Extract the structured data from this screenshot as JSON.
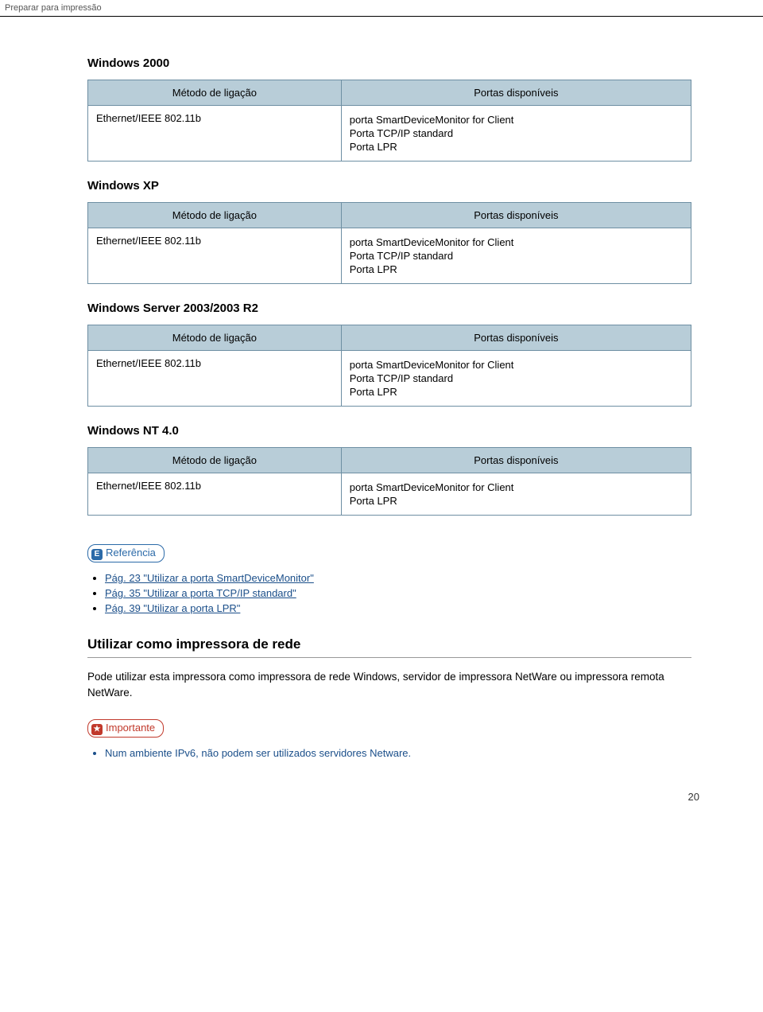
{
  "header": "Preparar para impressão",
  "page_number": "20",
  "colors": {
    "table_header_bg": "#b8cdd8",
    "table_border": "#6e8fa3",
    "link": "#1b4f8a",
    "badge_ref": "#2b6aa8",
    "badge_important": "#c1392b"
  },
  "common": {
    "col1": "Método de ligação",
    "col2": "Portas disponíveis",
    "ethernet": "Ethernet/IEEE 802.11b",
    "port_sdm": "porta SmartDeviceMonitor for Client",
    "port_tcpip": "Porta TCP/IP standard",
    "port_lpr": "Porta LPR"
  },
  "sections": [
    {
      "title": "Windows 2000",
      "ports": [
        "port_sdm",
        "port_tcpip",
        "port_lpr"
      ]
    },
    {
      "title": "Windows XP",
      "ports": [
        "port_sdm",
        "port_tcpip",
        "port_lpr"
      ]
    },
    {
      "title": "Windows Server 2003/2003 R2",
      "ports": [
        "port_sdm",
        "port_tcpip",
        "port_lpr"
      ]
    },
    {
      "title": "Windows NT 4.0",
      "ports": [
        "port_sdm",
        "port_lpr"
      ]
    }
  ],
  "reference": {
    "label": "Referência",
    "icon": "E",
    "links": [
      "Pág. 23 \"Utilizar a porta SmartDeviceMonitor\"",
      "Pág. 35 \"Utilizar a porta TCP/IP standard\"",
      "Pág. 39 \"Utilizar a porta LPR\""
    ]
  },
  "network": {
    "heading": "Utilizar como impressora de rede",
    "paragraph": "Pode utilizar esta impressora como impressora de rede Windows, servidor de impressora NetWare ou impressora remota NetWare.",
    "important_label": "Importante",
    "important_icon": "★",
    "note": "Num ambiente IPv6, não podem ser utilizados servidores Netware."
  }
}
